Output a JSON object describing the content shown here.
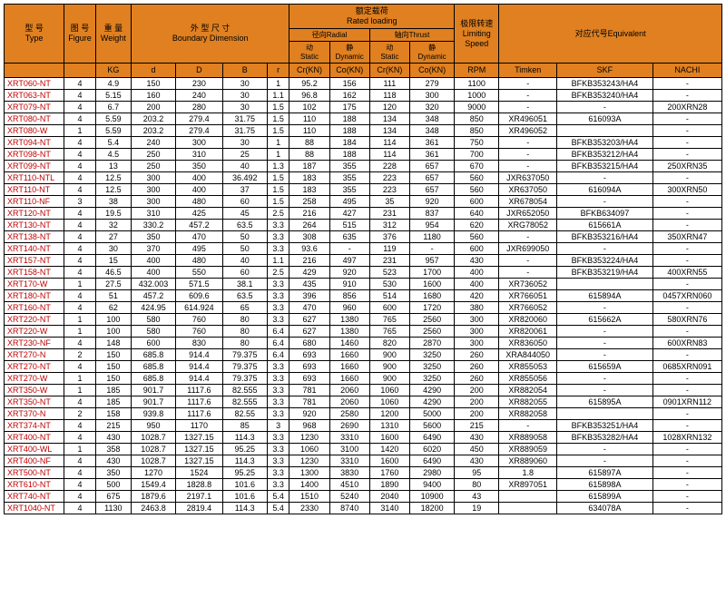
{
  "headers": {
    "type": "型 号\nType",
    "figure": "图 号\nFigure",
    "weight": "重 量\nWeight",
    "boundary": "外 型 尺 寸\nBoundary Dimension",
    "rated": "额定载荷\nRated loading",
    "radial": "径向Radial",
    "thrust": "轴向Thrust",
    "static1": "动\nStatic",
    "dynamic1": "静\nDynamic",
    "static2": "动\nStatic",
    "dynamic2": "静\nDynamic",
    "limit": "极限转速\nLimiting\nSpeed",
    "equiv": "对应代号Equivalent",
    "kg": "KG",
    "d": "d",
    "D": "D",
    "B": "B",
    "r": "r",
    "cr1": "Cr(KN)",
    "co1": "Co(KN)",
    "cr2": "Cr(KN)",
    "co2": "Co(KN)",
    "rpm": "RPM",
    "timken": "Timken",
    "skf": "SKF",
    "nachi": "NACHI"
  },
  "rows": [
    [
      "XRT060-NT",
      "4",
      "4.9",
      "150",
      "230",
      "30",
      "1",
      "95.2",
      "156",
      "111",
      "279",
      "1100",
      "-",
      "BFKB353243/HA4",
      "-"
    ],
    [
      "XRT063-NT",
      "4",
      "5.15",
      "160",
      "240",
      "30",
      "1.1",
      "96.8",
      "162",
      "118",
      "300",
      "1000",
      "-",
      "BFKB353240/HA4",
      "-"
    ],
    [
      "XRT079-NT",
      "4",
      "6.7",
      "200",
      "280",
      "30",
      "1.5",
      "102",
      "175",
      "120",
      "320",
      "9000",
      "-",
      "-",
      "200XRN28"
    ],
    [
      "XRT080-NT",
      "4",
      "5.59",
      "203.2",
      "279.4",
      "31.75",
      "1.5",
      "110",
      "188",
      "134",
      "348",
      "850",
      "XR496051",
      "616093A",
      "-"
    ],
    [
      "XRT080-W",
      "1",
      "5.59",
      "203.2",
      "279.4",
      "31.75",
      "1.5",
      "110",
      "188",
      "134",
      "348",
      "850",
      "XR496052",
      "",
      "-"
    ],
    [
      "XRT094-NT",
      "4",
      "5.4",
      "240",
      "300",
      "30",
      "1",
      "88",
      "184",
      "114",
      "361",
      "750",
      "-",
      "BFKB353203/HA4",
      "-"
    ],
    [
      "XRT098-NT",
      "4",
      "4.5",
      "250",
      "310",
      "25",
      "1",
      "88",
      "188",
      "114",
      "361",
      "700",
      "-",
      "BFKB353212/HA4",
      "-"
    ],
    [
      "XRT099-NT",
      "4",
      "13",
      "250",
      "350",
      "40",
      "1.3",
      "187",
      "355",
      "228",
      "657",
      "670",
      "-",
      "BFKB353215/HA4",
      "250XRN35"
    ],
    [
      "XRT110-NTL",
      "4",
      "12.5",
      "300",
      "400",
      "36.492",
      "1.5",
      "183",
      "355",
      "223",
      "657",
      "560",
      "JXR637050",
      "-",
      "-"
    ],
    [
      "XRT110-NT",
      "4",
      "12.5",
      "300",
      "400",
      "37",
      "1.5",
      "183",
      "355",
      "223",
      "657",
      "560",
      "XR637050",
      "616094A",
      "300XRN50"
    ],
    [
      "XRT110-NF",
      "3",
      "38",
      "300",
      "480",
      "60",
      "1.5",
      "258",
      "495",
      "35",
      "920",
      "600",
      "XR678054",
      "-",
      "-"
    ],
    [
      "XRT120-NT",
      "4",
      "19.5",
      "310",
      "425",
      "45",
      "2.5",
      "216",
      "427",
      "231",
      "837",
      "640",
      "JXR652050",
      "BFKB634097",
      "-"
    ],
    [
      "XRT130-NT",
      "4",
      "32",
      "330.2",
      "457.2",
      "63.5",
      "3.3",
      "264",
      "515",
      "312",
      "954",
      "620",
      "XRG78052",
      "615661A",
      "-"
    ],
    [
      "XRT138-NT",
      "4",
      "27",
      "350",
      "470",
      "50",
      "3.3",
      "308",
      "635",
      "376",
      "1180",
      "560",
      "-",
      "BFKB353216/HA4",
      "350XRN47"
    ],
    [
      "XRT140-NT",
      "4",
      "30",
      "370",
      "495",
      "50",
      "3.3",
      "93.6",
      "-",
      "119",
      "-",
      "600",
      "JXR699050",
      "-",
      "-"
    ],
    [
      "XRT157-NT",
      "4",
      "15",
      "400",
      "480",
      "40",
      "1.1",
      "216",
      "497",
      "231",
      "957",
      "430",
      "-",
      "BFKB353224/HA4",
      "-"
    ],
    [
      "XRT158-NT",
      "4",
      "46.5",
      "400",
      "550",
      "60",
      "2.5",
      "429",
      "920",
      "523",
      "1700",
      "400",
      "-",
      "BFKB353219/HA4",
      "400XRN55"
    ],
    [
      "XRT170-W",
      "1",
      "27.5",
      "432.003",
      "571.5",
      "38.1",
      "3.3",
      "435",
      "910",
      "530",
      "1600",
      "400",
      "XR736052",
      "",
      "-"
    ],
    [
      "XRT180-NT",
      "4",
      "51",
      "457.2",
      "609.6",
      "63.5",
      "3.3",
      "396",
      "856",
      "514",
      "1680",
      "420",
      "XR766051",
      "615894A",
      "0457XRN060"
    ],
    [
      "XRT160-NT",
      "4",
      "62",
      "424.95",
      "614.924",
      "65",
      "3.3",
      "470",
      "960",
      "600",
      "1720",
      "380",
      "XR766052",
      "-",
      "-"
    ],
    [
      "XRT220-NT",
      "1",
      "100",
      "580",
      "760",
      "80",
      "3.3",
      "627",
      "1380",
      "765",
      "2560",
      "300",
      "XR820060",
      "615662A",
      "580XRN76"
    ],
    [
      "XRT220-W",
      "1",
      "100",
      "580",
      "760",
      "80",
      "6.4",
      "627",
      "1380",
      "765",
      "2560",
      "300",
      "XR820061",
      "-",
      "-"
    ],
    [
      "XRT230-NF",
      "4",
      "148",
      "600",
      "830",
      "80",
      "6.4",
      "680",
      "1460",
      "820",
      "2870",
      "300",
      "XR836050",
      "-",
      "600XRN83"
    ],
    [
      "XRT270-N",
      "2",
      "150",
      "685.8",
      "914.4",
      "79.375",
      "6.4",
      "693",
      "1660",
      "900",
      "3250",
      "260",
      "XRA844050",
      "-",
      "-"
    ],
    [
      "XRT270-NT",
      "4",
      "150",
      "685.8",
      "914.4",
      "79.375",
      "3.3",
      "693",
      "1660",
      "900",
      "3250",
      "260",
      "XR855053",
      "615659A",
      "0685XRN091"
    ],
    [
      "XRT270-W",
      "1",
      "150",
      "685.8",
      "914.4",
      "79.375",
      "3.3",
      "693",
      "1660",
      "900",
      "3250",
      "260",
      "XR855056",
      "-",
      "-"
    ],
    [
      "XRT350-W",
      "1",
      "185",
      "901.7",
      "1117.6",
      "82.555",
      "3.3",
      "781",
      "2060",
      "1060",
      "4290",
      "200",
      "XR882054",
      "-",
      "-"
    ],
    [
      "XRT350-NT",
      "4",
      "185",
      "901.7",
      "1117.6",
      "82.555",
      "3.3",
      "781",
      "2060",
      "1060",
      "4290",
      "200",
      "XR882055",
      "615895A",
      "0901XRN112"
    ],
    [
      "XRT370-N",
      "2",
      "158",
      "939.8",
      "1117.6",
      "82.55",
      "3.3",
      "920",
      "2580",
      "1200",
      "5000",
      "200",
      "XR882058",
      "",
      "-"
    ],
    [
      "XRT374-NT",
      "4",
      "215",
      "950",
      "1170",
      "85",
      "3",
      "968",
      "2690",
      "1310",
      "5600",
      "215",
      "-",
      "BFKB353251/HA4",
      "-"
    ],
    [
      "XRT400-NT",
      "4",
      "430",
      "1028.7",
      "1327.15",
      "114.3",
      "3.3",
      "1230",
      "3310",
      "1600",
      "6490",
      "430",
      "XR889058",
      "BFKB353282/HA4",
      "1028XRN132"
    ],
    [
      "XRT400-WL",
      "1",
      "358",
      "1028.7",
      "1327.15",
      "95.25",
      "3.3",
      "1060",
      "3100",
      "1420",
      "6020",
      "450",
      "XR889059",
      "-",
      "-"
    ],
    [
      "XRT400-NF",
      "4",
      "430",
      "1028.7",
      "1327.15",
      "114.3",
      "3.3",
      "1230",
      "3310",
      "1600",
      "6490",
      "430",
      "XR889060",
      "-",
      "-"
    ],
    [
      "XRT500-NT",
      "4",
      "350",
      "1270",
      "1524",
      "95.25",
      "3.3",
      "1300",
      "3830",
      "1760",
      "2980",
      "95",
      "1.8",
      "615897A",
      "-"
    ],
    [
      "XRT610-NT",
      "4",
      "500",
      "1549.4",
      "1828.8",
      "101.6",
      "3.3",
      "1400",
      "4510",
      "1890",
      "9400",
      "80",
      "XR897051",
      "615898A",
      "-"
    ],
    [
      "XRT740-NT",
      "4",
      "675",
      "1879.6",
      "2197.1",
      "101.6",
      "5.4",
      "1510",
      "5240",
      "2040",
      "10900",
      "43",
      "",
      "615899A",
      "-"
    ],
    [
      "XRT1040-NT",
      "4",
      "1130",
      "2463.8",
      "2819.4",
      "114.3",
      "5.4",
      "2330",
      "8740",
      "3140",
      "18200",
      "19",
      "",
      "634078A",
      "-"
    ]
  ]
}
